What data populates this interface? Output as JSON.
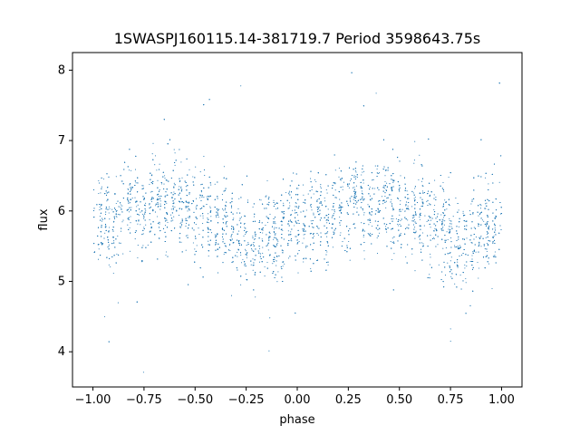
{
  "chart_data": {
    "type": "scatter",
    "title": "1SWASPJ160115.14-381719.7 Period 3598643.75s",
    "xlabel": "phase",
    "ylabel": "flux",
    "xlim": [
      -1.1,
      1.1
    ],
    "ylim": [
      3.5,
      8.25
    ],
    "xticks": [
      -1.0,
      -0.75,
      -0.5,
      -0.25,
      0.0,
      0.25,
      0.5,
      0.75,
      1.0
    ],
    "xtick_labels": [
      "−1.00",
      "−0.75",
      "−0.50",
      "−0.25",
      "0.00",
      "0.25",
      "0.50",
      "0.75",
      "1.00"
    ],
    "yticks": [
      4,
      5,
      6,
      7,
      8
    ],
    "ytick_labels": [
      "4",
      "5",
      "6",
      "7",
      "8"
    ],
    "grid": false,
    "point_color": "#1f77b4",
    "series": [
      {
        "x": [
          -0.98,
          -0.95,
          -0.9,
          -0.85,
          -0.8,
          -0.75,
          -0.7,
          -0.65,
          -0.6,
          -0.55,
          -0.5,
          -0.45,
          -0.4,
          -0.35,
          -0.3,
          -0.25,
          -0.2,
          -0.15,
          -0.1,
          -0.05,
          0.0,
          0.05,
          0.1,
          0.15,
          0.2,
          0.25,
          0.3,
          0.35,
          0.4,
          0.45,
          0.5,
          0.55,
          0.6,
          0.65,
          0.7,
          0.75,
          0.8,
          0.85,
          0.9,
          0.95,
          0.98
        ],
        "y": [
          5.9,
          6.0,
          5.8,
          6.1,
          6.2,
          5.9,
          6.2,
          6.0,
          6.3,
          6.0,
          5.9,
          6.0,
          5.8,
          5.9,
          5.7,
          5.6,
          5.4,
          5.7,
          5.6,
          5.8,
          5.8,
          5.9,
          6.0,
          5.9,
          6.1,
          6.0,
          6.3,
          5.9,
          6.2,
          6.1,
          6.1,
          5.9,
          6.0,
          5.8,
          5.9,
          5.7,
          5.5,
          5.7,
          5.8,
          5.7,
          5.9
        ]
      }
    ]
  }
}
